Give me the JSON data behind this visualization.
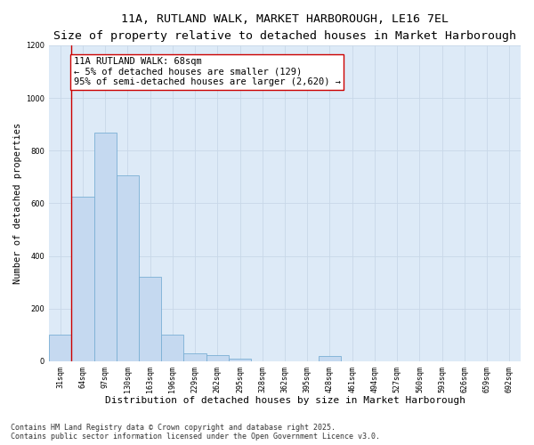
{
  "title1": "11A, RUTLAND WALK, MARKET HARBOROUGH, LE16 7EL",
  "title2": "Size of property relative to detached houses in Market Harborough",
  "xlabel": "Distribution of detached houses by size in Market Harborough",
  "ylabel": "Number of detached properties",
  "categories": [
    "31sqm",
    "64sqm",
    "97sqm",
    "130sqm",
    "163sqm",
    "196sqm",
    "229sqm",
    "262sqm",
    "295sqm",
    "328sqm",
    "362sqm",
    "395sqm",
    "428sqm",
    "461sqm",
    "494sqm",
    "527sqm",
    "560sqm",
    "593sqm",
    "626sqm",
    "659sqm",
    "692sqm"
  ],
  "values": [
    100,
    625,
    870,
    705,
    320,
    100,
    30,
    22,
    10,
    0,
    0,
    0,
    20,
    0,
    0,
    0,
    0,
    0,
    0,
    0,
    0
  ],
  "bar_color": "#c5d9f0",
  "bar_edge_color": "#7bafd4",
  "property_line_x": 0.5,
  "property_line_color": "#cc0000",
  "annotation_text_line1": "11A RUTLAND WALK: 68sqm",
  "annotation_text_line2": "← 5% of detached houses are smaller (129)",
  "annotation_text_line3": "95% of semi-detached houses are larger (2,620) →",
  "annotation_box_edge": "#cc0000",
  "ylim": [
    0,
    1200
  ],
  "yticks": [
    0,
    200,
    400,
    600,
    800,
    1000,
    1200
  ],
  "grid_color": "#c8d8e8",
  "bg_color": "#ddeaf7",
  "footer_line1": "Contains HM Land Registry data © Crown copyright and database right 2025.",
  "footer_line2": "Contains public sector information licensed under the Open Government Licence v3.0.",
  "title_fontsize": 9.5,
  "subtitle_fontsize": 8.5,
  "xlabel_fontsize": 8,
  "ylabel_fontsize": 7.5,
  "tick_fontsize": 6,
  "annotation_fontsize": 7.5,
  "footer_fontsize": 6
}
